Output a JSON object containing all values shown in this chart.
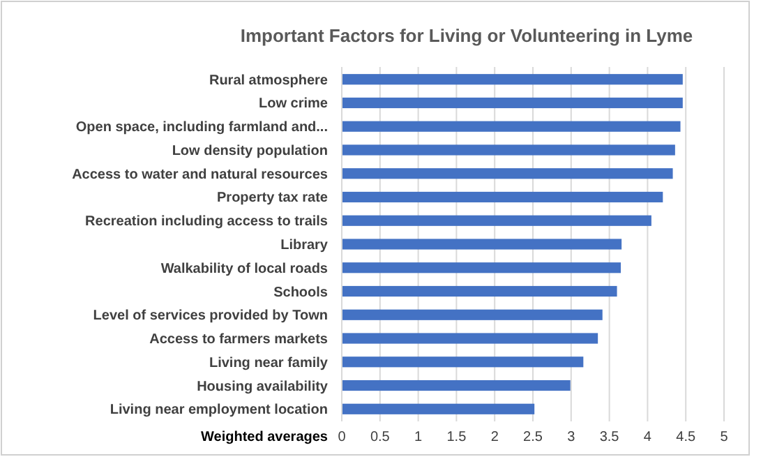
{
  "chart_data": {
    "type": "bar",
    "orientation": "horizontal",
    "title": "Important Factors for Living or Volunteering in Lyme",
    "xlabel": "Weighted averages",
    "categories": [
      "Rural atmosphere",
      "Low crime",
      "Open space, including farmland and...",
      "Low density population",
      "Access to water and natural resources",
      "Property tax rate",
      "Recreation including access to trails",
      "Library",
      "Walkability of local roads",
      "Schools",
      "Level of services provided by Town",
      "Access to farmers markets",
      "Living near family",
      "Housing availability",
      "Living near employment location"
    ],
    "values": [
      4.46,
      4.46,
      4.43,
      4.36,
      4.33,
      4.2,
      4.05,
      3.66,
      3.65,
      3.6,
      3.41,
      3.35,
      3.16,
      2.99,
      2.52
    ],
    "color": "#4472c4",
    "xlim": [
      0,
      5
    ],
    "xticks": [
      0,
      0.5,
      1,
      1.5,
      2,
      2.5,
      3,
      3.5,
      4,
      4.5,
      5
    ],
    "grid": "x"
  }
}
